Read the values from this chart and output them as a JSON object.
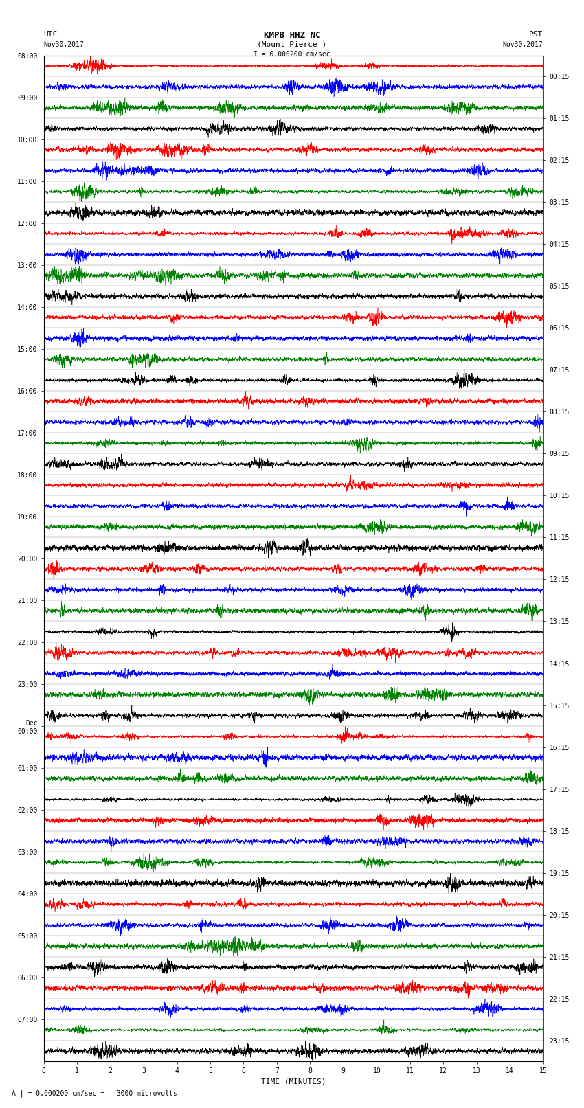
{
  "title_line1": "KMPB HHZ NC",
  "title_line2": "(Mount Pierce )",
  "scale_label": "I = 0.000200 cm/sec",
  "bottom_label": "A | = 0.000200 cm/sec =   3000 microvolts",
  "xlabel": "TIME (MINUTES)",
  "utc_label": "UTC\nNov30,2017",
  "pst_label": "PST\nNov30,2017",
  "left_times": [
    "08:00",
    "09:00",
    "10:00",
    "11:00",
    "12:00",
    "13:00",
    "14:00",
    "15:00",
    "16:00",
    "17:00",
    "18:00",
    "19:00",
    "20:00",
    "21:00",
    "22:00",
    "23:00",
    "Dec\n00:00",
    "01:00",
    "02:00",
    "03:00",
    "04:00",
    "05:00",
    "06:00",
    "07:00"
  ],
  "right_times": [
    "00:15",
    "01:15",
    "02:15",
    "03:15",
    "04:15",
    "05:15",
    "06:15",
    "07:15",
    "08:15",
    "09:15",
    "10:15",
    "11:15",
    "12:15",
    "13:15",
    "14:15",
    "15:15",
    "16:15",
    "17:15",
    "18:15",
    "19:15",
    "20:15",
    "21:15",
    "22:15",
    "23:15"
  ],
  "n_rows": 48,
  "n_samples": 4000,
  "colors": [
    "#ff0000",
    "#0000ff",
    "#008000",
    "#000000"
  ],
  "bg_color": "#ffffff",
  "trace_amplitude": 0.48,
  "fig_width": 8.5,
  "fig_height": 16.13,
  "dpi": 100,
  "lw": 0.4
}
